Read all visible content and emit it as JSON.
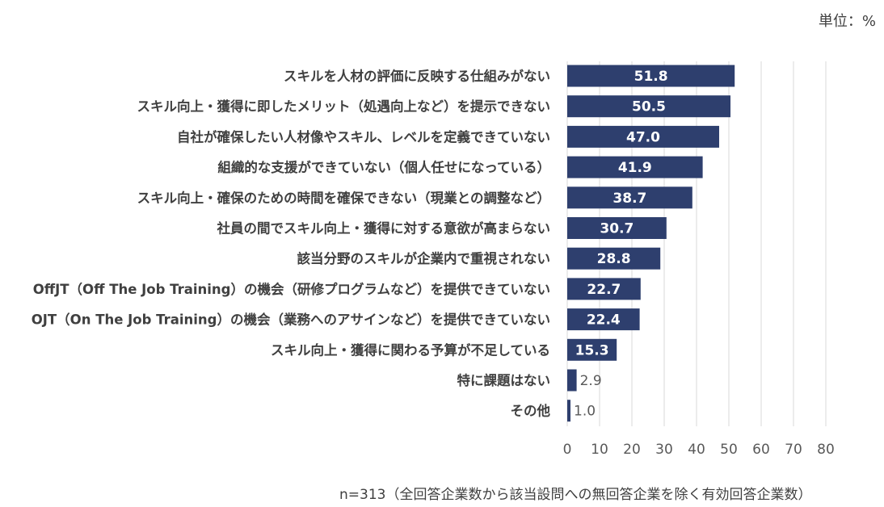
{
  "chart_data": {
    "type": "bar",
    "orientation": "horizontal",
    "unit_label": "単位：%",
    "categories": [
      "スキルを人材の評価に反映する仕組みがない",
      "スキル向上・獲得に即したメリット（処遇向上など）を提示できない",
      "自社が確保したい人材像やスキル、レベルを定義できていない",
      "組織的な支援ができていない（個人任せになっている）",
      "スキル向上・確保のための時間を確保できない（現業との調整など）",
      "社員の間でスキル向上・獲得に対する意欲が高まらない",
      "該当分野のスキルが企業内で重視されない",
      "OffJT（Off The Job Training）の機会（研修プログラムなど）を提供できていない",
      "OJT（On The Job Training）の機会（業務へのアサインなど）を提供できていない",
      "スキル向上・獲得に関わる予算が不足している",
      "特に課題はない",
      "その他"
    ],
    "values": [
      51.8,
      50.5,
      47.0,
      41.9,
      38.7,
      30.7,
      28.8,
      22.7,
      22.4,
      15.3,
      2.9,
      1.0
    ],
    "value_labels": [
      "51.8",
      "50.5",
      "47.0",
      "41.9",
      "38.7",
      "30.7",
      "28.8",
      "22.7",
      "22.4",
      "15.3",
      "2.9",
      "1.0"
    ],
    "xlim": [
      0,
      80
    ],
    "xticks": [
      "0",
      "10",
      "20",
      "30",
      "40",
      "50",
      "60",
      "70",
      "80"
    ],
    "grid": true,
    "bar_color": "#2e3f6e",
    "grid_color": "#d9d9d9",
    "footnote": "n=313（全回答企業数から該当設問への無回答企業を除く有効回答企業数）"
  }
}
